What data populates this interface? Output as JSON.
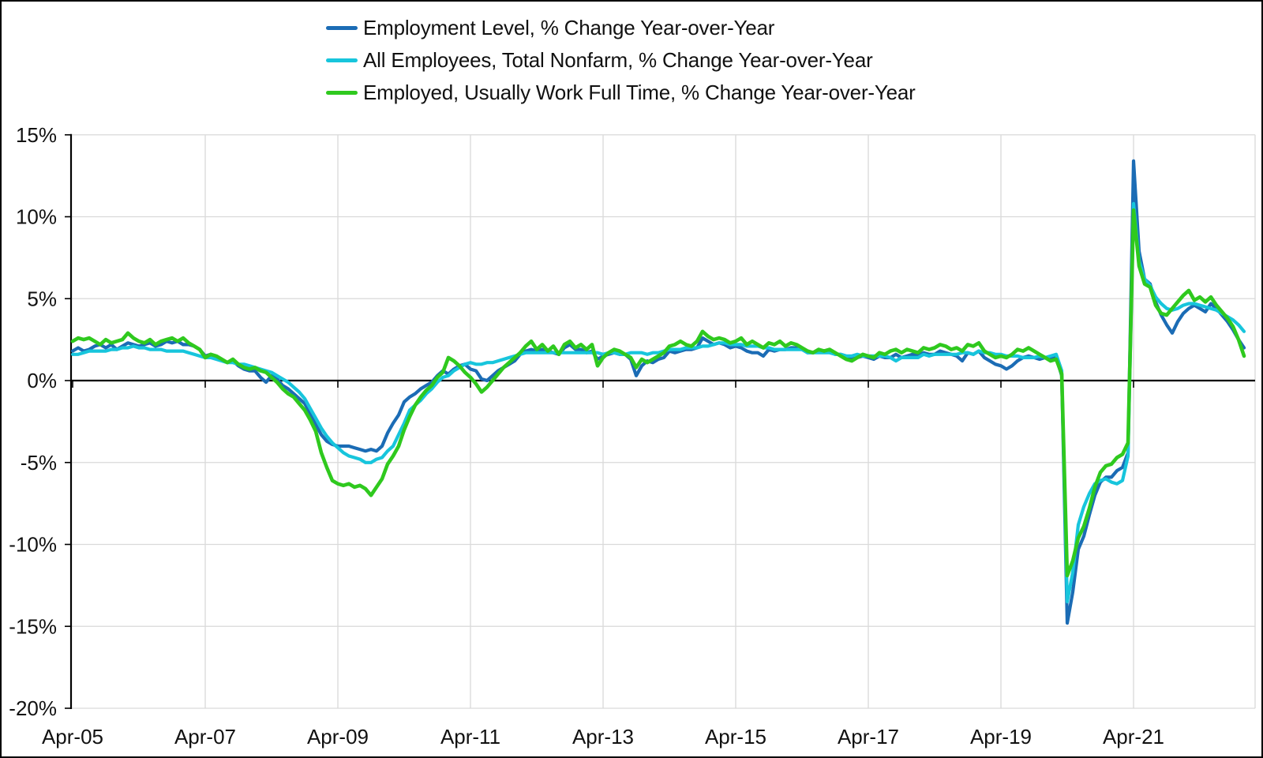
{
  "chart_data": {
    "type": "line",
    "title": "",
    "frequency": "monthly",
    "x_start": "Apr-2005",
    "x_end": "Dec-2022",
    "x_tick_labels": [
      "Apr-05",
      "Apr-07",
      "Apr-09",
      "Apr-11",
      "Apr-13",
      "Apr-15",
      "Apr-17",
      "Apr-19",
      "Apr-21"
    ],
    "x_tick_interval_months": 24,
    "ylim": [
      -20,
      15
    ],
    "y_tick_values": [
      15,
      10,
      5,
      0,
      -5,
      -10,
      -15,
      -20
    ],
    "y_tick_labels": [
      "15%",
      "10%",
      "5%",
      "0%",
      "-5%",
      "-10%",
      "-15%",
      "-20%"
    ],
    "grid": true,
    "grid_color": "#D9D9D9",
    "axis_color": "#000000",
    "background_color": "#FFFFFF",
    "legend_position": "top",
    "series": [
      {
        "name": "Employment Level, % Change Year-over-Year",
        "color": "#1B6CB5",
        "values": [
          1.8,
          2.0,
          1.8,
          1.9,
          2.1,
          2.2,
          2.0,
          2.2,
          1.9,
          2.1,
          2.3,
          2.2,
          2.1,
          2.2,
          2.3,
          2.1,
          2.2,
          2.4,
          2.3,
          2.4,
          2.2,
          2.2,
          2.1,
          1.9,
          1.5,
          1.6,
          1.4,
          1.3,
          1.1,
          1.2,
          0.9,
          0.7,
          0.6,
          0.6,
          0.2,
          -0.1,
          0.3,
          0.1,
          -0.3,
          -0.5,
          -0.8,
          -1.1,
          -1.4,
          -2.0,
          -2.7,
          -3.3,
          -3.7,
          -3.9,
          -4.0,
          -4.0,
          -4.0,
          -4.1,
          -4.2,
          -4.3,
          -4.2,
          -4.3,
          -4.0,
          -3.2,
          -2.6,
          -2.1,
          -1.3,
          -1.0,
          -0.8,
          -0.5,
          -0.3,
          -0.1,
          0.3,
          0.6,
          0.4,
          0.7,
          0.9,
          1.0,
          0.7,
          0.6,
          0.1,
          0.0,
          0.3,
          0.6,
          0.8,
          1.0,
          1.2,
          1.6,
          1.8,
          1.9,
          1.8,
          1.9,
          1.8,
          1.7,
          1.6,
          2.0,
          2.2,
          1.9,
          1.9,
          1.7,
          1.8,
          1.3,
          1.5,
          1.6,
          1.7,
          1.6,
          1.6,
          1.3,
          0.3,
          0.9,
          1.2,
          1.1,
          1.3,
          1.4,
          1.8,
          1.7,
          1.8,
          1.9,
          1.9,
          2.0,
          2.6,
          2.4,
          2.2,
          2.3,
          2.2,
          2.0,
          2.1,
          2.0,
          1.8,
          1.7,
          1.7,
          1.5,
          1.9,
          1.8,
          1.9,
          1.9,
          2.0,
          2.0,
          1.9,
          1.7,
          1.7,
          1.8,
          1.8,
          1.9,
          1.6,
          1.6,
          1.5,
          1.3,
          1.4,
          1.5,
          1.4,
          1.3,
          1.5,
          1.4,
          1.4,
          1.6,
          1.4,
          1.5,
          1.6,
          1.5,
          1.7,
          1.6,
          1.6,
          1.8,
          1.7,
          1.6,
          1.5,
          1.2,
          1.7,
          1.6,
          1.8,
          1.4,
          1.2,
          1.0,
          0.9,
          0.7,
          0.9,
          1.2,
          1.4,
          1.5,
          1.4,
          1.3,
          1.4,
          1.3,
          1.4,
          0.3,
          -14.8,
          -12.9,
          -10.3,
          -9.5,
          -8.2,
          -7.0,
          -6.2,
          -5.9,
          -5.9,
          -5.5,
          -5.3,
          -4.4,
          13.4,
          7.9,
          6.2,
          5.9,
          4.8,
          4.0,
          3.4,
          2.9,
          3.6,
          4.1,
          4.4,
          4.6,
          4.4,
          4.2,
          4.7,
          4.4,
          4.0,
          3.6,
          3.1,
          2.5,
          2.0
        ]
      },
      {
        "name": "All Employees, Total Nonfarm, % Change Year-over-Year",
        "color": "#17C5DC",
        "values": [
          1.6,
          1.6,
          1.7,
          1.8,
          1.8,
          1.8,
          1.8,
          1.9,
          1.9,
          2.0,
          2.0,
          2.1,
          2.0,
          2.0,
          1.9,
          1.9,
          1.9,
          1.8,
          1.8,
          1.8,
          1.8,
          1.7,
          1.6,
          1.5,
          1.4,
          1.4,
          1.3,
          1.2,
          1.1,
          1.1,
          1.0,
          1.0,
          0.9,
          0.8,
          0.7,
          0.6,
          0.5,
          0.3,
          0.1,
          -0.1,
          -0.4,
          -0.7,
          -1.1,
          -1.7,
          -2.3,
          -2.9,
          -3.4,
          -3.8,
          -4.1,
          -4.4,
          -4.6,
          -4.7,
          -4.8,
          -5.0,
          -5.0,
          -4.8,
          -4.7,
          -4.3,
          -4.0,
          -3.3,
          -2.6,
          -1.8,
          -1.5,
          -1.2,
          -0.8,
          -0.5,
          -0.1,
          0.2,
          0.3,
          0.6,
          0.8,
          1.0,
          1.1,
          1.0,
          1.0,
          1.1,
          1.1,
          1.2,
          1.3,
          1.4,
          1.5,
          1.6,
          1.7,
          1.7,
          1.7,
          1.7,
          1.7,
          1.7,
          1.7,
          1.7,
          1.7,
          1.7,
          1.7,
          1.7,
          1.7,
          1.7,
          1.6,
          1.7,
          1.7,
          1.6,
          1.6,
          1.7,
          1.7,
          1.7,
          1.6,
          1.7,
          1.7,
          1.8,
          1.9,
          1.9,
          1.9,
          2.0,
          2.0,
          2.0,
          2.1,
          2.1,
          2.2,
          2.3,
          2.3,
          2.2,
          2.2,
          2.2,
          2.1,
          2.1,
          2.1,
          2.0,
          2.0,
          1.9,
          1.9,
          1.9,
          1.9,
          1.9,
          1.9,
          1.7,
          1.7,
          1.7,
          1.7,
          1.7,
          1.6,
          1.6,
          1.5,
          1.5,
          1.6,
          1.5,
          1.5,
          1.5,
          1.5,
          1.5,
          1.4,
          1.2,
          1.4,
          1.4,
          1.4,
          1.4,
          1.6,
          1.5,
          1.6,
          1.6,
          1.6,
          1.6,
          1.6,
          1.7,
          1.7,
          1.6,
          1.8,
          1.7,
          1.7,
          1.6,
          1.6,
          1.5,
          1.5,
          1.5,
          1.4,
          1.4,
          1.4,
          1.5,
          1.4,
          1.5,
          1.6,
          0.6,
          -13.5,
          -11.7,
          -8.8,
          -7.7,
          -6.9,
          -6.3,
          -6.1,
          -6.0,
          -6.2,
          -6.3,
          -6.1,
          -4.6,
          10.8,
          7.3,
          6.2,
          5.8,
          5.1,
          4.7,
          4.4,
          4.3,
          4.4,
          4.6,
          4.7,
          4.7,
          4.6,
          4.5,
          4.4,
          4.3,
          4.1,
          3.9,
          3.7,
          3.4,
          3.0
        ]
      },
      {
        "name": "Employed, Usually Work Full Time, % Change Year-over-Year",
        "color": "#2FC91E",
        "values": [
          2.4,
          2.6,
          2.5,
          2.6,
          2.4,
          2.2,
          2.5,
          2.3,
          2.4,
          2.5,
          2.9,
          2.6,
          2.4,
          2.3,
          2.5,
          2.2,
          2.4,
          2.5,
          2.6,
          2.4,
          2.6,
          2.3,
          2.1,
          1.9,
          1.4,
          1.6,
          1.5,
          1.3,
          1.1,
          1.3,
          1.0,
          0.8,
          0.7,
          0.8,
          0.6,
          0.5,
          0.2,
          -0.1,
          -0.5,
          -0.8,
          -1.0,
          -1.4,
          -1.8,
          -2.4,
          -3.1,
          -4.4,
          -5.3,
          -6.1,
          -6.3,
          -6.4,
          -6.3,
          -6.5,
          -6.4,
          -6.6,
          -7.0,
          -6.5,
          -6.0,
          -5.1,
          -4.6,
          -4.0,
          -3.0,
          -2.2,
          -1.5,
          -1.0,
          -0.6,
          -0.3,
          0.2,
          0.5,
          1.4,
          1.2,
          0.9,
          0.5,
          0.2,
          -0.2,
          -0.7,
          -0.4,
          0.0,
          0.4,
          0.8,
          1.1,
          1.4,
          1.7,
          2.1,
          2.4,
          1.9,
          2.2,
          1.8,
          2.1,
          1.6,
          2.2,
          2.4,
          2.0,
          2.2,
          1.9,
          2.2,
          0.9,
          1.4,
          1.7,
          1.9,
          1.8,
          1.6,
          1.4,
          0.8,
          1.3,
          1.1,
          1.3,
          1.5,
          1.7,
          2.1,
          2.2,
          2.4,
          2.2,
          2.1,
          2.4,
          3.0,
          2.7,
          2.5,
          2.6,
          2.5,
          2.3,
          2.4,
          2.6,
          2.2,
          2.4,
          2.2,
          2.0,
          2.3,
          2.2,
          2.4,
          2.1,
          2.3,
          2.2,
          2.0,
          1.8,
          1.7,
          1.9,
          1.8,
          1.9,
          1.7,
          1.5,
          1.3,
          1.2,
          1.4,
          1.6,
          1.5,
          1.4,
          1.7,
          1.6,
          1.8,
          1.9,
          1.7,
          1.9,
          1.8,
          1.7,
          2.0,
          1.9,
          2.0,
          2.2,
          2.1,
          1.9,
          2.0,
          1.8,
          2.2,
          2.1,
          2.3,
          1.8,
          1.6,
          1.4,
          1.5,
          1.4,
          1.6,
          1.9,
          1.8,
          2.0,
          1.8,
          1.6,
          1.4,
          1.2,
          1.3,
          0.4,
          -11.9,
          -11.0,
          -9.6,
          -8.9,
          -7.8,
          -6.5,
          -5.6,
          -5.2,
          -5.1,
          -4.7,
          -4.5,
          -3.8,
          10.4,
          7.0,
          5.9,
          5.7,
          4.6,
          4.1,
          4.0,
          4.4,
          4.8,
          5.2,
          5.5,
          4.9,
          5.1,
          4.8,
          5.1,
          4.6,
          4.2,
          3.8,
          3.3,
          2.5,
          1.5
        ]
      }
    ]
  }
}
